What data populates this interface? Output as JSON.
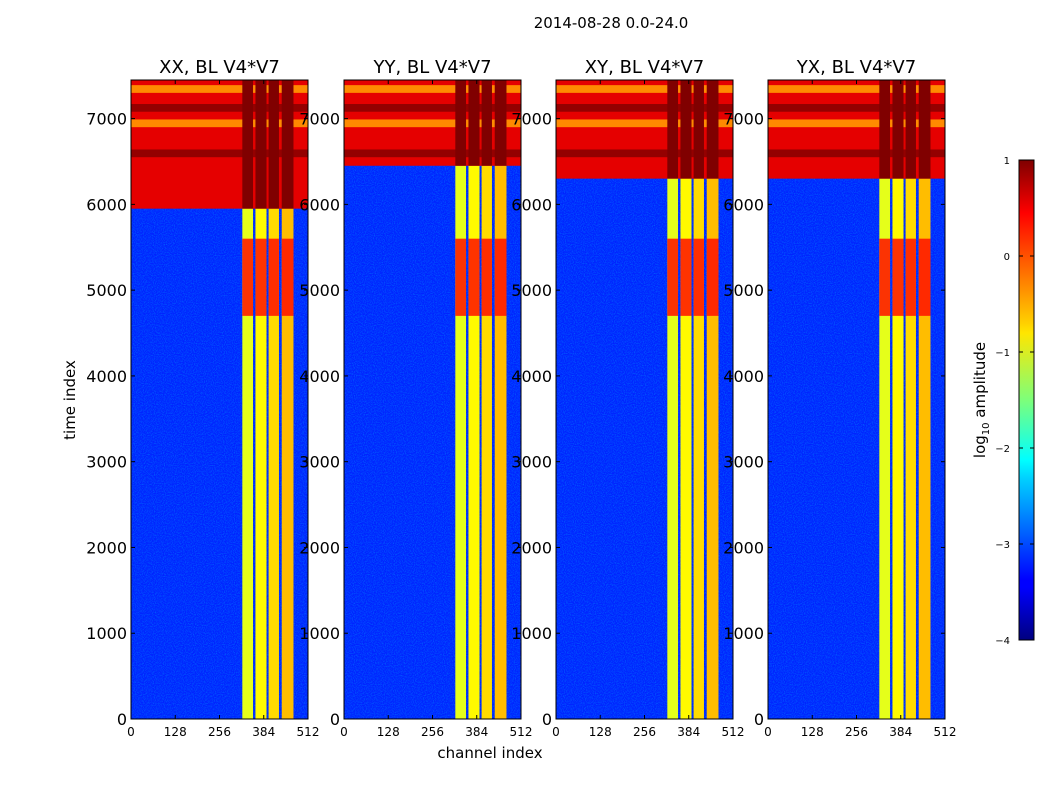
{
  "chart_data": {
    "type": "heatmap",
    "suptitle": "2014-08-28 0.0-24.0",
    "xlabel": "channel index",
    "ylabel": "time index",
    "x_range": [
      0,
      512
    ],
    "y_range": [
      0,
      7450
    ],
    "x_ticks": [
      0,
      128,
      256,
      384,
      512
    ],
    "y_ticks": [
      0,
      1000,
      2000,
      3000,
      4000,
      5000,
      6000,
      7000
    ],
    "panels": [
      {
        "title": "XX, BL V4*V7",
        "flare_start": 5950
      },
      {
        "title": "YY, BL V4*V7",
        "flare_start": 6450
      },
      {
        "title": "XY, BL V4*V7",
        "flare_start": 6300
      },
      {
        "title": "YX, BL V4*V7",
        "flare_start": 6300
      }
    ],
    "rfi_band_channels": [
      [
        322,
        353
      ],
      [
        360,
        392
      ],
      [
        398,
        428
      ],
      [
        436,
        470
      ]
    ],
    "rfi_band_log10_amplitude_range": [
      -1.2,
      0.9
    ],
    "background_log10_amplitude": -3.2,
    "colorbar": {
      "label_main": "log",
      "label_sub": "10",
      "label_rest": " amplitude",
      "range": [
        -4,
        1
      ],
      "ticks": [
        1,
        0,
        -1,
        -2,
        -3,
        -4
      ],
      "tick_labels": [
        "1",
        "0",
        "−1",
        "−2",
        "−3",
        "−4"
      ],
      "colormap": "jet"
    }
  }
}
